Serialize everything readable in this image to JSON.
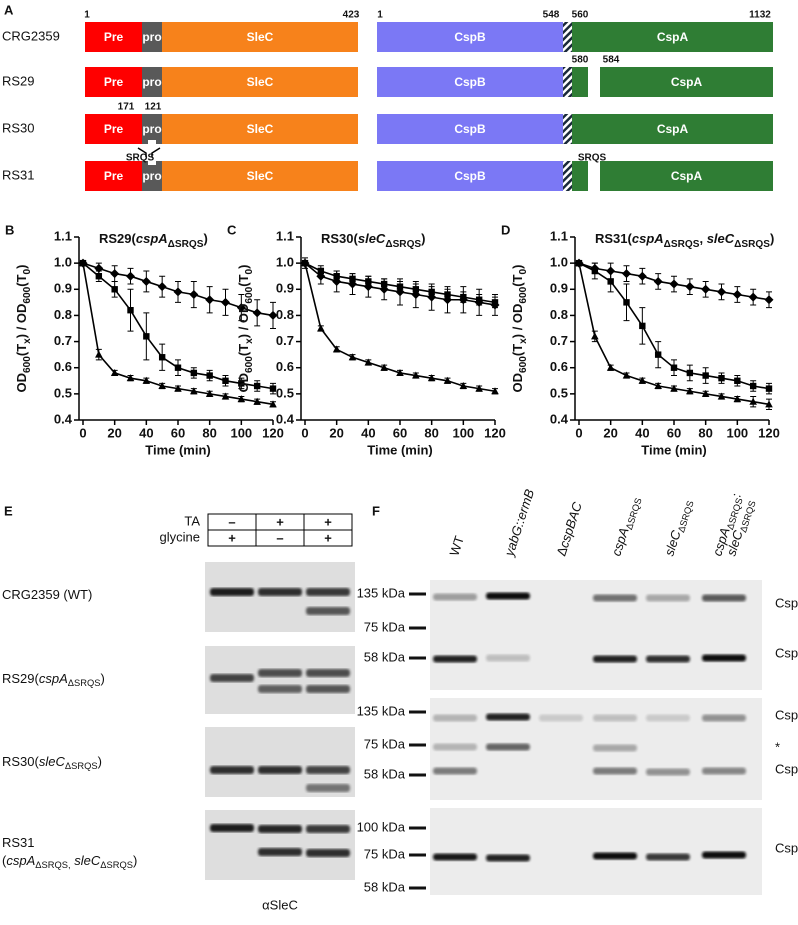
{
  "panel_a": {
    "letter": "A",
    "strains": [
      "CRG2359",
      "RS29",
      "RS30",
      "RS31"
    ],
    "domains": {
      "pre": "Pre",
      "pro": "pro",
      "slec": "SleC",
      "cspb": "CspB",
      "cspa": "CspA"
    },
    "positions": {
      "slec_start": "1",
      "slec_end": "423",
      "cspb_start": "1",
      "cspb_end": "548",
      "cspa_start": "560",
      "cspa_end": "1132",
      "rs29_a": "580",
      "rs29_b": "584",
      "rs30_a": "171",
      "rs30_b": "121"
    },
    "motifs": [
      "SRQS",
      "SRQS"
    ]
  },
  "chart_data": [
    {
      "type": "line",
      "panel": "B",
      "title": [
        {
          "text": "RS29("
        },
        {
          "text": "cspA",
          "italic": true
        },
        {
          "text": "ΔSRQS",
          "sub": true
        },
        {
          "text": ")"
        }
      ],
      "xlabel": "Time (min)",
      "ylabel": [
        {
          "text": "OD"
        },
        {
          "text": "600",
          "sub": true
        },
        {
          "text": "(T"
        },
        {
          "text": "x",
          "sub": true
        },
        {
          "text": ") / OD"
        },
        {
          "text": "600",
          "sub": true
        },
        {
          "text": "(T"
        },
        {
          "text": "0",
          "sub": true
        },
        {
          "text": ")"
        }
      ],
      "x": [
        0,
        10,
        20,
        30,
        40,
        50,
        60,
        70,
        80,
        90,
        100,
        110,
        120
      ],
      "xlim": [
        0,
        120
      ],
      "xticks": [
        0,
        20,
        40,
        60,
        80,
        100,
        120
      ],
      "ylim": [
        0.4,
        1.1
      ],
      "yticks": [
        0.4,
        0.5,
        0.6,
        0.7,
        0.8,
        0.9,
        {
          "value": 1,
          "label": "1.0"
        },
        1.1
      ],
      "series": [
        {
          "marker": "diamond",
          "color": "#000000",
          "values": [
            1.0,
            0.98,
            0.96,
            0.95,
            0.93,
            0.91,
            0.89,
            0.88,
            0.86,
            0.85,
            0.83,
            0.81,
            0.8
          ],
          "errors": [
            0.01,
            0.02,
            0.03,
            0.03,
            0.04,
            0.04,
            0.04,
            0.05,
            0.05,
            0.05,
            0.05,
            0.05,
            0.05
          ]
        },
        {
          "marker": "square",
          "color": "#000000",
          "values": [
            1.0,
            0.95,
            0.9,
            0.82,
            0.72,
            0.64,
            0.6,
            0.58,
            0.57,
            0.55,
            0.54,
            0.53,
            0.52
          ],
          "errors": [
            0.01,
            0.02,
            0.03,
            0.08,
            0.09,
            0.05,
            0.03,
            0.02,
            0.02,
            0.02,
            0.02,
            0.02,
            0.02
          ]
        },
        {
          "marker": "triangle",
          "color": "#000000",
          "values": [
            1.0,
            0.65,
            0.58,
            0.56,
            0.55,
            0.53,
            0.52,
            0.51,
            0.5,
            0.49,
            0.48,
            0.47,
            0.46
          ],
          "errors": [
            0.01,
            0.02,
            0.01,
            0.01,
            0.01,
            0.01,
            0.01,
            0.01,
            0.01,
            0.01,
            0.01,
            0.01,
            0.01
          ]
        }
      ]
    },
    {
      "type": "line",
      "panel": "C",
      "title": [
        {
          "text": "RS30("
        },
        {
          "text": "sleC",
          "italic": true
        },
        {
          "text": "ΔSRQS",
          "sub": true
        },
        {
          "text": ")"
        }
      ],
      "xlabel": "Time (min)",
      "ylabel": [
        {
          "text": "OD"
        },
        {
          "text": "600",
          "sub": true
        },
        {
          "text": "(T"
        },
        {
          "text": "x",
          "sub": true
        },
        {
          "text": ") / OD"
        },
        {
          "text": "600",
          "sub": true
        },
        {
          "text": "(T"
        },
        {
          "text": "0",
          "sub": true
        },
        {
          "text": ")"
        }
      ],
      "x": [
        0,
        10,
        20,
        30,
        40,
        50,
        60,
        70,
        80,
        90,
        100,
        110,
        120
      ],
      "xlim": [
        0,
        120
      ],
      "xticks": [
        0,
        20,
        40,
        60,
        80,
        100,
        120
      ],
      "ylim": [
        0.4,
        1.1
      ],
      "yticks": [
        0.4,
        0.5,
        0.6,
        0.7,
        0.8,
        0.9,
        {
          "value": 1,
          "label": "1.0"
        },
        1.1
      ],
      "series": [
        {
          "marker": "diamond",
          "color": "#000000",
          "values": [
            1.0,
            0.95,
            0.93,
            0.92,
            0.91,
            0.9,
            0.89,
            0.88,
            0.87,
            0.86,
            0.86,
            0.85,
            0.84
          ],
          "errors": [
            0.02,
            0.03,
            0.04,
            0.04,
            0.04,
            0.04,
            0.05,
            0.05,
            0.05,
            0.05,
            0.05,
            0.05,
            0.04
          ]
        },
        {
          "marker": "square",
          "color": "#000000",
          "values": [
            1.0,
            0.97,
            0.95,
            0.94,
            0.93,
            0.92,
            0.91,
            0.9,
            0.89,
            0.88,
            0.87,
            0.86,
            0.85
          ],
          "errors": [
            0.01,
            0.02,
            0.02,
            0.02,
            0.02,
            0.02,
            0.02,
            0.02,
            0.02,
            0.02,
            0.02,
            0.02,
            0.02
          ]
        },
        {
          "marker": "triangle",
          "color": "#000000",
          "values": [
            1.0,
            0.75,
            0.67,
            0.64,
            0.62,
            0.6,
            0.58,
            0.57,
            0.56,
            0.55,
            0.53,
            0.52,
            0.51
          ],
          "errors": [
            0.01,
            0.01,
            0.01,
            0.01,
            0.01,
            0.01,
            0.01,
            0.01,
            0.01,
            0.01,
            0.01,
            0.01,
            0.01
          ]
        }
      ]
    },
    {
      "type": "line",
      "panel": "D",
      "title": [
        {
          "text": "RS31("
        },
        {
          "text": "cspA",
          "italic": true
        },
        {
          "text": "ΔSRQS",
          "sub": true
        },
        {
          "text": ", "
        },
        {
          "text": "sleC",
          "italic": true
        },
        {
          "text": "ΔSRQS",
          "sub": true
        },
        {
          "text": ")"
        }
      ],
      "xlabel": "Time (min)",
      "ylabel": [
        {
          "text": "OD"
        },
        {
          "text": "600",
          "sub": true
        },
        {
          "text": "(T"
        },
        {
          "text": "x",
          "sub": true
        },
        {
          "text": ") / OD"
        },
        {
          "text": "600",
          "sub": true
        },
        {
          "text": "(T"
        },
        {
          "text": "0",
          "sub": true
        },
        {
          "text": ")"
        }
      ],
      "x": [
        0,
        10,
        20,
        30,
        40,
        50,
        60,
        70,
        80,
        90,
        100,
        110,
        120
      ],
      "xlim": [
        0,
        120
      ],
      "xticks": [
        0,
        20,
        40,
        60,
        80,
        100,
        120
      ],
      "ylim": [
        0.4,
        1.1
      ],
      "yticks": [
        0.4,
        0.5,
        0.6,
        0.7,
        0.8,
        0.9,
        {
          "value": 1,
          "label": "1.0"
        },
        1.1
      ],
      "series": [
        {
          "marker": "diamond",
          "color": "#000000",
          "values": [
            1.0,
            0.98,
            0.97,
            0.96,
            0.95,
            0.93,
            0.92,
            0.91,
            0.9,
            0.89,
            0.88,
            0.87,
            0.86
          ],
          "errors": [
            0.01,
            0.02,
            0.03,
            0.03,
            0.03,
            0.03,
            0.03,
            0.03,
            0.03,
            0.03,
            0.03,
            0.03,
            0.03
          ]
        },
        {
          "marker": "square",
          "color": "#000000",
          "values": [
            1.0,
            0.97,
            0.93,
            0.85,
            0.76,
            0.65,
            0.6,
            0.58,
            0.57,
            0.56,
            0.55,
            0.53,
            0.52
          ],
          "errors": [
            0.01,
            0.03,
            0.04,
            0.07,
            0.07,
            0.05,
            0.03,
            0.03,
            0.03,
            0.02,
            0.02,
            0.02,
            0.02
          ]
        },
        {
          "marker": "triangle",
          "color": "#000000",
          "values": [
            1.0,
            0.72,
            0.6,
            0.57,
            0.55,
            0.53,
            0.52,
            0.51,
            0.5,
            0.49,
            0.48,
            0.47,
            0.46
          ],
          "errors": [
            0.01,
            0.02,
            0.01,
            0.01,
            0.01,
            0.01,
            0.01,
            0.01,
            0.01,
            0.01,
            0.01,
            0.02,
            0.02
          ]
        }
      ]
    }
  ],
  "panel_e": {
    "letter": "E",
    "conditions": [
      {
        "name": "TA",
        "signs": [
          "–",
          "+",
          "+"
        ]
      },
      {
        "name": "glycine",
        "signs": [
          "+",
          "–",
          "+"
        ]
      }
    ],
    "rows": [
      [
        {
          "text": "CRG2359 (WT)"
        }
      ],
      [
        {
          "text": "RS29("
        },
        {
          "text": "cspA",
          "italic": true
        },
        {
          "text": "ΔSRQS",
          "sub": true
        },
        {
          "text": ")"
        }
      ],
      [
        {
          "text": "RS30("
        },
        {
          "text": "sleC",
          "italic": true
        },
        {
          "text": "ΔSRQS",
          "sub": true
        },
        {
          "text": ")"
        }
      ],
      [
        {
          "text": "RS31"
        }
      ],
      [
        {
          "text": "("
        },
        {
          "text": "cspA",
          "italic": true
        },
        {
          "text": "ΔSRQS,",
          "sub": true
        },
        {
          "text": " "
        },
        {
          "text": "sleC",
          "italic": true
        },
        {
          "text": "ΔSRQS",
          "sub": true
        },
        {
          "text": ")"
        }
      ]
    ],
    "antibody": "αSleC"
  },
  "panel_f": {
    "letter": "F",
    "lanes": [
      [
        {
          "text": "WT"
        }
      ],
      [
        {
          "text": "yabG::ermB",
          "italic": true
        }
      ],
      [
        {
          "text": "Δ"
        },
        {
          "text": "cspBAC",
          "italic": true
        }
      ],
      [
        {
          "text": "cspA",
          "italic": true
        },
        {
          "text": "ΔSRQS",
          "sub": true
        }
      ],
      [
        {
          "text": "sleC",
          "italic": true
        },
        {
          "text": "ΔSRQS",
          "sub": true
        }
      ],
      [
        {
          "text": "cspA",
          "italic": true
        },
        {
          "text": "ΔSRQS",
          "sub": true
        },
        {
          "text": ":"
        }
      ],
      [
        {
          "text": "sleC",
          "italic": true
        },
        {
          "text": "ΔSRQS",
          "sub": true
        }
      ]
    ],
    "blots": [
      {
        "markers": [
          "135 kDa",
          "75 kDa",
          "58 kDa"
        ],
        "bands": [
          "CspBA",
          "CspB"
        ]
      },
      {
        "markers": [
          "135 kDa",
          "75 kDa",
          "58 kDa"
        ],
        "bands": [
          "CspBA",
          "*",
          "CspA"
        ]
      },
      {
        "markers": [
          "100 kDa",
          "75 kDa",
          "58 kDa"
        ],
        "bands": [
          "CspC"
        ]
      }
    ]
  }
}
